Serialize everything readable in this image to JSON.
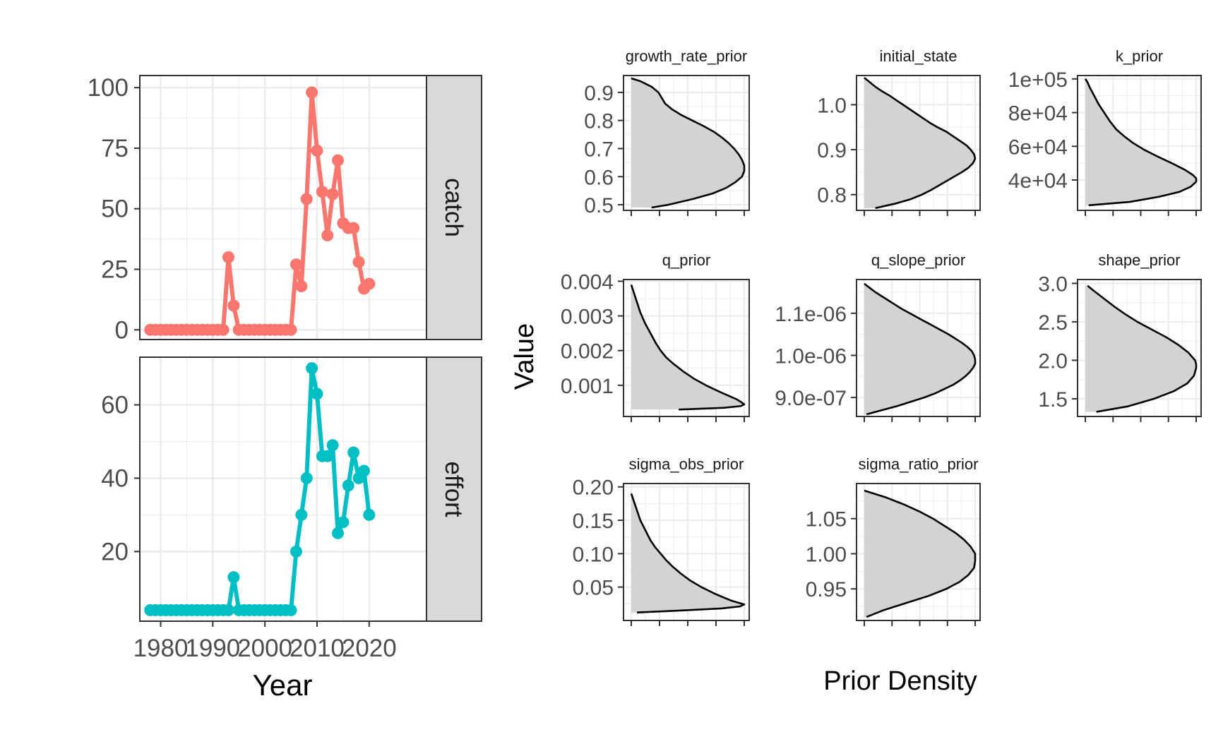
{
  "colors": {
    "catch": "#F8766D",
    "effort": "#00BFC4",
    "density_fill": "#D3D3D3",
    "density_line": "#000000",
    "grid": "#EBEBEB",
    "panel_border": "#333333",
    "strip_fill": "#D9D9D9"
  },
  "chart_data": [
    {
      "type": "line",
      "facet": "catch",
      "strip_label": "catch",
      "xlabel": "Year",
      "ylabel": "",
      "xlim": [
        1976,
        2031
      ],
      "ylim": [
        -4,
        105
      ],
      "x_ticks": [
        1980,
        1990,
        2000,
        2010,
        2020
      ],
      "x_tick_labels": [
        "1980",
        "1990",
        "2000",
        "2010",
        "2020"
      ],
      "y_ticks": [
        0,
        25,
        50,
        75,
        100
      ],
      "y_tick_labels": [
        "0",
        "25",
        "50",
        "75",
        "100"
      ],
      "grid": true,
      "series": [
        {
          "color": "#F8766D",
          "x": [
            1978,
            1979,
            1980,
            1981,
            1982,
            1983,
            1984,
            1985,
            1986,
            1987,
            1988,
            1989,
            1990,
            1991,
            1992,
            1993,
            1994,
            1995,
            1996,
            1997,
            1998,
            1999,
            2000,
            2001,
            2002,
            2003,
            2004,
            2005,
            2006,
            2007,
            2008,
            2009,
            2010,
            2011,
            2012,
            2013,
            2014,
            2015,
            2016,
            2017,
            2018,
            2019,
            2020
          ],
          "y": [
            0,
            0,
            0,
            0,
            0,
            0,
            0,
            0,
            0,
            0,
            0,
            0,
            0,
            0,
            0,
            30,
            10,
            0,
            0,
            0,
            0,
            0,
            0,
            0,
            0,
            0,
            0,
            0,
            27,
            18,
            54,
            98,
            74,
            57,
            39,
            56,
            70,
            44,
            42,
            42,
            28,
            17,
            19
          ]
        }
      ]
    },
    {
      "type": "line",
      "facet": "effort",
      "strip_label": "effort",
      "xlabel": "Year",
      "ylabel": "",
      "xlim": [
        1976,
        2031
      ],
      "ylim": [
        1,
        73
      ],
      "x_ticks": [
        1980,
        1990,
        2000,
        2010,
        2020
      ],
      "x_tick_labels": [
        "1980",
        "1990",
        "2000",
        "2010",
        "2020"
      ],
      "y_ticks": [
        20,
        40,
        60
      ],
      "y_tick_labels": [
        "20",
        "40",
        "60"
      ],
      "grid": true,
      "series": [
        {
          "color": "#00BFC4",
          "x": [
            1978,
            1979,
            1980,
            1981,
            1982,
            1983,
            1984,
            1985,
            1986,
            1987,
            1988,
            1989,
            1990,
            1991,
            1992,
            1993,
            1994,
            1995,
            1996,
            1997,
            1998,
            1999,
            2000,
            2001,
            2002,
            2003,
            2004,
            2005,
            2006,
            2007,
            2008,
            2009,
            2010,
            2011,
            2012,
            2013,
            2014,
            2015,
            2016,
            2017,
            2018,
            2019,
            2020
          ],
          "y": [
            4,
            4,
            4,
            4,
            4,
            4,
            4,
            4,
            4,
            4,
            4,
            4,
            4,
            4,
            4,
            4,
            13,
            4,
            4,
            4,
            4,
            4,
            4,
            4,
            4,
            4,
            4,
            4,
            20,
            30,
            40,
            70,
            63,
            46,
            46,
            49,
            25,
            28,
            38,
            47,
            40,
            42,
            30
          ]
        }
      ]
    },
    {
      "type": "area",
      "title": "growth_rate_prior",
      "ylim": [
        0.48,
        0.96
      ],
      "y_ticks": [
        0.5,
        0.6,
        0.7,
        0.8,
        0.9
      ],
      "y_tick_labels": [
        "0.5",
        "0.6",
        "0.7",
        "0.8",
        "0.9"
      ],
      "grid": true,
      "x_tick_labels": [],
      "y": [
        0.49,
        0.5,
        0.52,
        0.54,
        0.56,
        0.58,
        0.6,
        0.62,
        0.64,
        0.66,
        0.68,
        0.7,
        0.72,
        0.74,
        0.76,
        0.78,
        0.8,
        0.82,
        0.84,
        0.86,
        0.88,
        0.9,
        0.92,
        0.94,
        0.95
      ],
      "density": [
        0.18,
        0.33,
        0.54,
        0.72,
        0.84,
        0.92,
        0.98,
        1.0,
        1.0,
        0.98,
        0.95,
        0.91,
        0.86,
        0.8,
        0.73,
        0.64,
        0.54,
        0.44,
        0.36,
        0.3,
        0.27,
        0.24,
        0.18,
        0.08,
        0.0
      ]
    },
    {
      "type": "area",
      "title": "initial_state",
      "ylim": [
        0.765,
        1.065
      ],
      "y_ticks": [
        0.8,
        0.9,
        1.0
      ],
      "y_tick_labels": [
        "0.8",
        "0.9",
        "1.0"
      ],
      "grid": true,
      "x_tick_labels": [],
      "y": [
        0.77,
        0.78,
        0.79,
        0.8,
        0.81,
        0.82,
        0.83,
        0.84,
        0.85,
        0.86,
        0.87,
        0.88,
        0.89,
        0.9,
        0.91,
        0.92,
        0.93,
        0.94,
        0.95,
        0.96,
        0.97,
        0.98,
        0.99,
        1.0,
        1.01,
        1.02,
        1.03,
        1.04,
        1.05,
        1.06
      ],
      "density": [
        0.1,
        0.28,
        0.42,
        0.52,
        0.6,
        0.67,
        0.74,
        0.81,
        0.88,
        0.94,
        0.98,
        1.0,
        0.99,
        0.96,
        0.92,
        0.86,
        0.8,
        0.74,
        0.66,
        0.59,
        0.53,
        0.47,
        0.41,
        0.35,
        0.29,
        0.23,
        0.16,
        0.1,
        0.05,
        0.0
      ]
    },
    {
      "type": "area",
      "title": "k_prior",
      "ylim": [
        22000,
        102000
      ],
      "y_ticks": [
        40000,
        60000,
        80000,
        100000
      ],
      "y_tick_labels": [
        "4e+04",
        "6e+04",
        "8e+04",
        "1e+05"
      ],
      "grid": true,
      "x_tick_labels": [],
      "y": [
        25000,
        27000,
        30000,
        33000,
        36000,
        39000,
        41000,
        43000,
        46000,
        50000,
        54000,
        58000,
        62000,
        66000,
        70000,
        75000,
        80000,
        85000,
        90000,
        95000,
        98000,
        100000
      ],
      "density": [
        0.03,
        0.4,
        0.66,
        0.85,
        0.95,
        1.0,
        1.0,
        0.97,
        0.9,
        0.78,
        0.65,
        0.53,
        0.43,
        0.35,
        0.28,
        0.22,
        0.17,
        0.12,
        0.08,
        0.04,
        0.02,
        0.0
      ]
    },
    {
      "type": "area",
      "title": "q_prior",
      "ylim": [
        0.0001,
        0.00405
      ],
      "y_ticks": [
        0.001,
        0.002,
        0.003,
        0.004
      ],
      "y_tick_labels": [
        "0.001",
        "0.002",
        "0.003",
        "0.004"
      ],
      "grid": true,
      "x_tick_labels": [],
      "y": [
        0.0003,
        0.00035,
        0.0004,
        0.00045,
        0.0005,
        0.0006,
        0.0007,
        0.0008,
        0.001,
        0.0012,
        0.0014,
        0.0016,
        0.0018,
        0.002,
        0.0022,
        0.0025,
        0.0028,
        0.0031,
        0.0034,
        0.0037,
        0.0039
      ],
      "density": [
        0.42,
        0.82,
        0.97,
        1.0,
        0.98,
        0.93,
        0.86,
        0.79,
        0.66,
        0.55,
        0.46,
        0.38,
        0.31,
        0.26,
        0.22,
        0.17,
        0.12,
        0.08,
        0.05,
        0.02,
        0.0
      ]
    },
    {
      "type": "area",
      "title": "q_slope_prior",
      "ylim": [
        8.55e-07,
        1.18e-06
      ],
      "y_ticks": [
        9e-07,
        1e-06,
        1.1e-06
      ],
      "y_tick_labels": [
        "9.0e-07",
        "1.0e-06",
        "1.1e-06"
      ],
      "grid": true,
      "x_tick_labels": [],
      "y": [
        8.6e-07,
        8.7e-07,
        8.8e-07,
        8.9e-07,
        9e-07,
        9.1e-07,
        9.2e-07,
        9.3e-07,
        9.4e-07,
        9.5e-07,
        9.6e-07,
        9.7e-07,
        9.8e-07,
        9.9e-07,
        1e-06,
        1.01e-06,
        1.02e-06,
        1.03e-06,
        1.04e-06,
        1.05e-06,
        1.06e-06,
        1.07e-06,
        1.08e-06,
        1.09e-06,
        1.1e-06,
        1.11e-06,
        1.12e-06,
        1.13e-06,
        1.14e-06,
        1.15e-06,
        1.16e-06,
        1.17e-06
      ],
      "density": [
        0.02,
        0.16,
        0.3,
        0.42,
        0.54,
        0.64,
        0.72,
        0.8,
        0.86,
        0.91,
        0.95,
        0.98,
        1.0,
        1.0,
        0.99,
        0.97,
        0.93,
        0.88,
        0.82,
        0.76,
        0.69,
        0.62,
        0.55,
        0.48,
        0.41,
        0.34,
        0.28,
        0.22,
        0.16,
        0.1,
        0.05,
        0.0
      ]
    },
    {
      "type": "area",
      "title": "shape_prior",
      "ylim": [
        1.27,
        3.05
      ],
      "y_ticks": [
        1.5,
        2.0,
        2.5,
        3.0
      ],
      "y_tick_labels": [
        "1.5",
        "2.0",
        "2.5",
        "3.0"
      ],
      "grid": true,
      "x_tick_labels": [],
      "y": [
        1.33,
        1.4,
        1.5,
        1.6,
        1.7,
        1.8,
        1.9,
        1.95,
        2.0,
        2.1,
        2.2,
        2.3,
        2.4,
        2.5,
        2.6,
        2.7,
        2.8,
        2.9,
        2.97
      ],
      "density": [
        0.1,
        0.38,
        0.62,
        0.8,
        0.92,
        0.98,
        1.0,
        1.0,
        0.99,
        0.93,
        0.84,
        0.73,
        0.6,
        0.47,
        0.36,
        0.26,
        0.17,
        0.08,
        0.02
      ]
    },
    {
      "type": "area",
      "title": "sigma_obs_prior",
      "ylim": [
        0.0,
        0.205
      ],
      "y_ticks": [
        0.05,
        0.1,
        0.15,
        0.2
      ],
      "y_tick_labels": [
        "0.05",
        "0.10",
        "0.15",
        "0.20"
      ],
      "grid": true,
      "x_tick_labels": [],
      "y": [
        0.012,
        0.015,
        0.018,
        0.021,
        0.024,
        0.03,
        0.04,
        0.05,
        0.06,
        0.07,
        0.08,
        0.09,
        0.1,
        0.11,
        0.12,
        0.13,
        0.14,
        0.15,
        0.16,
        0.17,
        0.18,
        0.19
      ],
      "density": [
        0.05,
        0.45,
        0.8,
        0.96,
        1.0,
        0.88,
        0.74,
        0.62,
        0.52,
        0.44,
        0.37,
        0.31,
        0.26,
        0.21,
        0.17,
        0.14,
        0.11,
        0.08,
        0.06,
        0.04,
        0.02,
        0.0
      ]
    },
    {
      "type": "area",
      "title": "sigma_ratio_prior",
      "ylim": [
        0.905,
        1.1
      ],
      "y_ticks": [
        0.95,
        1.0,
        1.05
      ],
      "y_tick_labels": [
        "0.95",
        "1.00",
        "1.05"
      ],
      "grid": true,
      "x_tick_labels": [],
      "y": [
        0.91,
        0.92,
        0.93,
        0.94,
        0.95,
        0.96,
        0.97,
        0.98,
        0.99,
        1.0,
        1.01,
        1.02,
        1.03,
        1.04,
        1.05,
        1.06,
        1.07,
        1.08,
        1.09
      ],
      "density": [
        0.02,
        0.18,
        0.38,
        0.58,
        0.74,
        0.86,
        0.94,
        0.99,
        1.0,
        1.0,
        0.96,
        0.9,
        0.82,
        0.72,
        0.62,
        0.5,
        0.36,
        0.2,
        0.0
      ]
    }
  ],
  "shared_axes": {
    "left_xlabel": "Year",
    "right_xlabel": "Prior Density",
    "right_ylabel": "Value"
  }
}
